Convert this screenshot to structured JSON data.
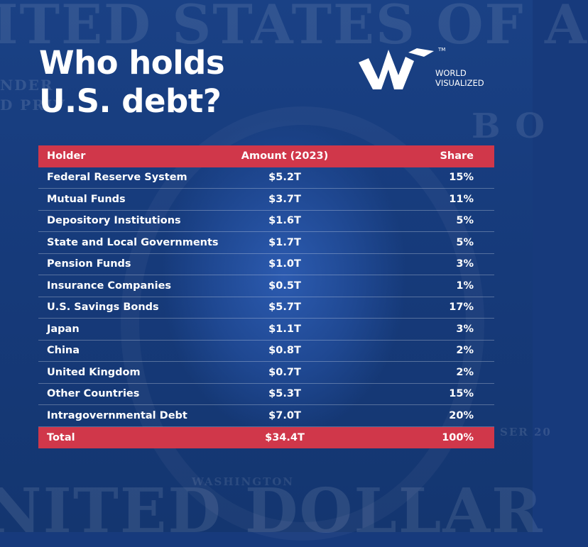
{
  "title": {
    "line1": "Who holds",
    "line2": "U.S. debt?"
  },
  "brand": {
    "line1": "WORLD",
    "line2": "VISUALIZED",
    "trademark": "TM"
  },
  "background_text": {
    "top": "ITED STATES OF A",
    "bottom": "NITED DOLLAR",
    "left1": "NDER",
    "left2": "D PRIV",
    "right": "B O",
    "right_small": "SER 20",
    "oval": "WASHINGTON"
  },
  "colors": {
    "background": "#173a7c",
    "accent_red": "#d0374a",
    "text": "#ffffff"
  },
  "chart_data": {
    "type": "table",
    "columns": [
      "Holder",
      "Amount (2023)",
      "Share"
    ],
    "rows": [
      {
        "holder": "Federal Reserve System",
        "amount": "$5.2T",
        "share": "15%"
      },
      {
        "holder": "Mutual Funds",
        "amount": "$3.7T",
        "share": "11%"
      },
      {
        "holder": "Depository Institutions",
        "amount": "$1.6T",
        "share": "5%"
      },
      {
        "holder": "State and Local Governments",
        "amount": "$1.7T",
        "share": "5%"
      },
      {
        "holder": "Pension Funds",
        "amount": "$1.0T",
        "share": "3%"
      },
      {
        "holder": "Insurance Companies",
        "amount": "$0.5T",
        "share": "1%"
      },
      {
        "holder": "U.S. Savings Bonds",
        "amount": "$5.7T",
        "share": "17%"
      },
      {
        "holder": "Japan",
        "amount": "$1.1T",
        "share": "3%"
      },
      {
        "holder": "China",
        "amount": "$0.8T",
        "share": "2%"
      },
      {
        "holder": "United Kingdom",
        "amount": "$0.7T",
        "share": "2%"
      },
      {
        "holder": "Other Countries",
        "amount": "$5.3T",
        "share": "15%"
      },
      {
        "holder": "Intragovernmental Debt",
        "amount": "$7.0T",
        "share": "20%"
      }
    ],
    "total": {
      "holder": "Total",
      "amount": "$34.4T",
      "share": "100%"
    }
  }
}
